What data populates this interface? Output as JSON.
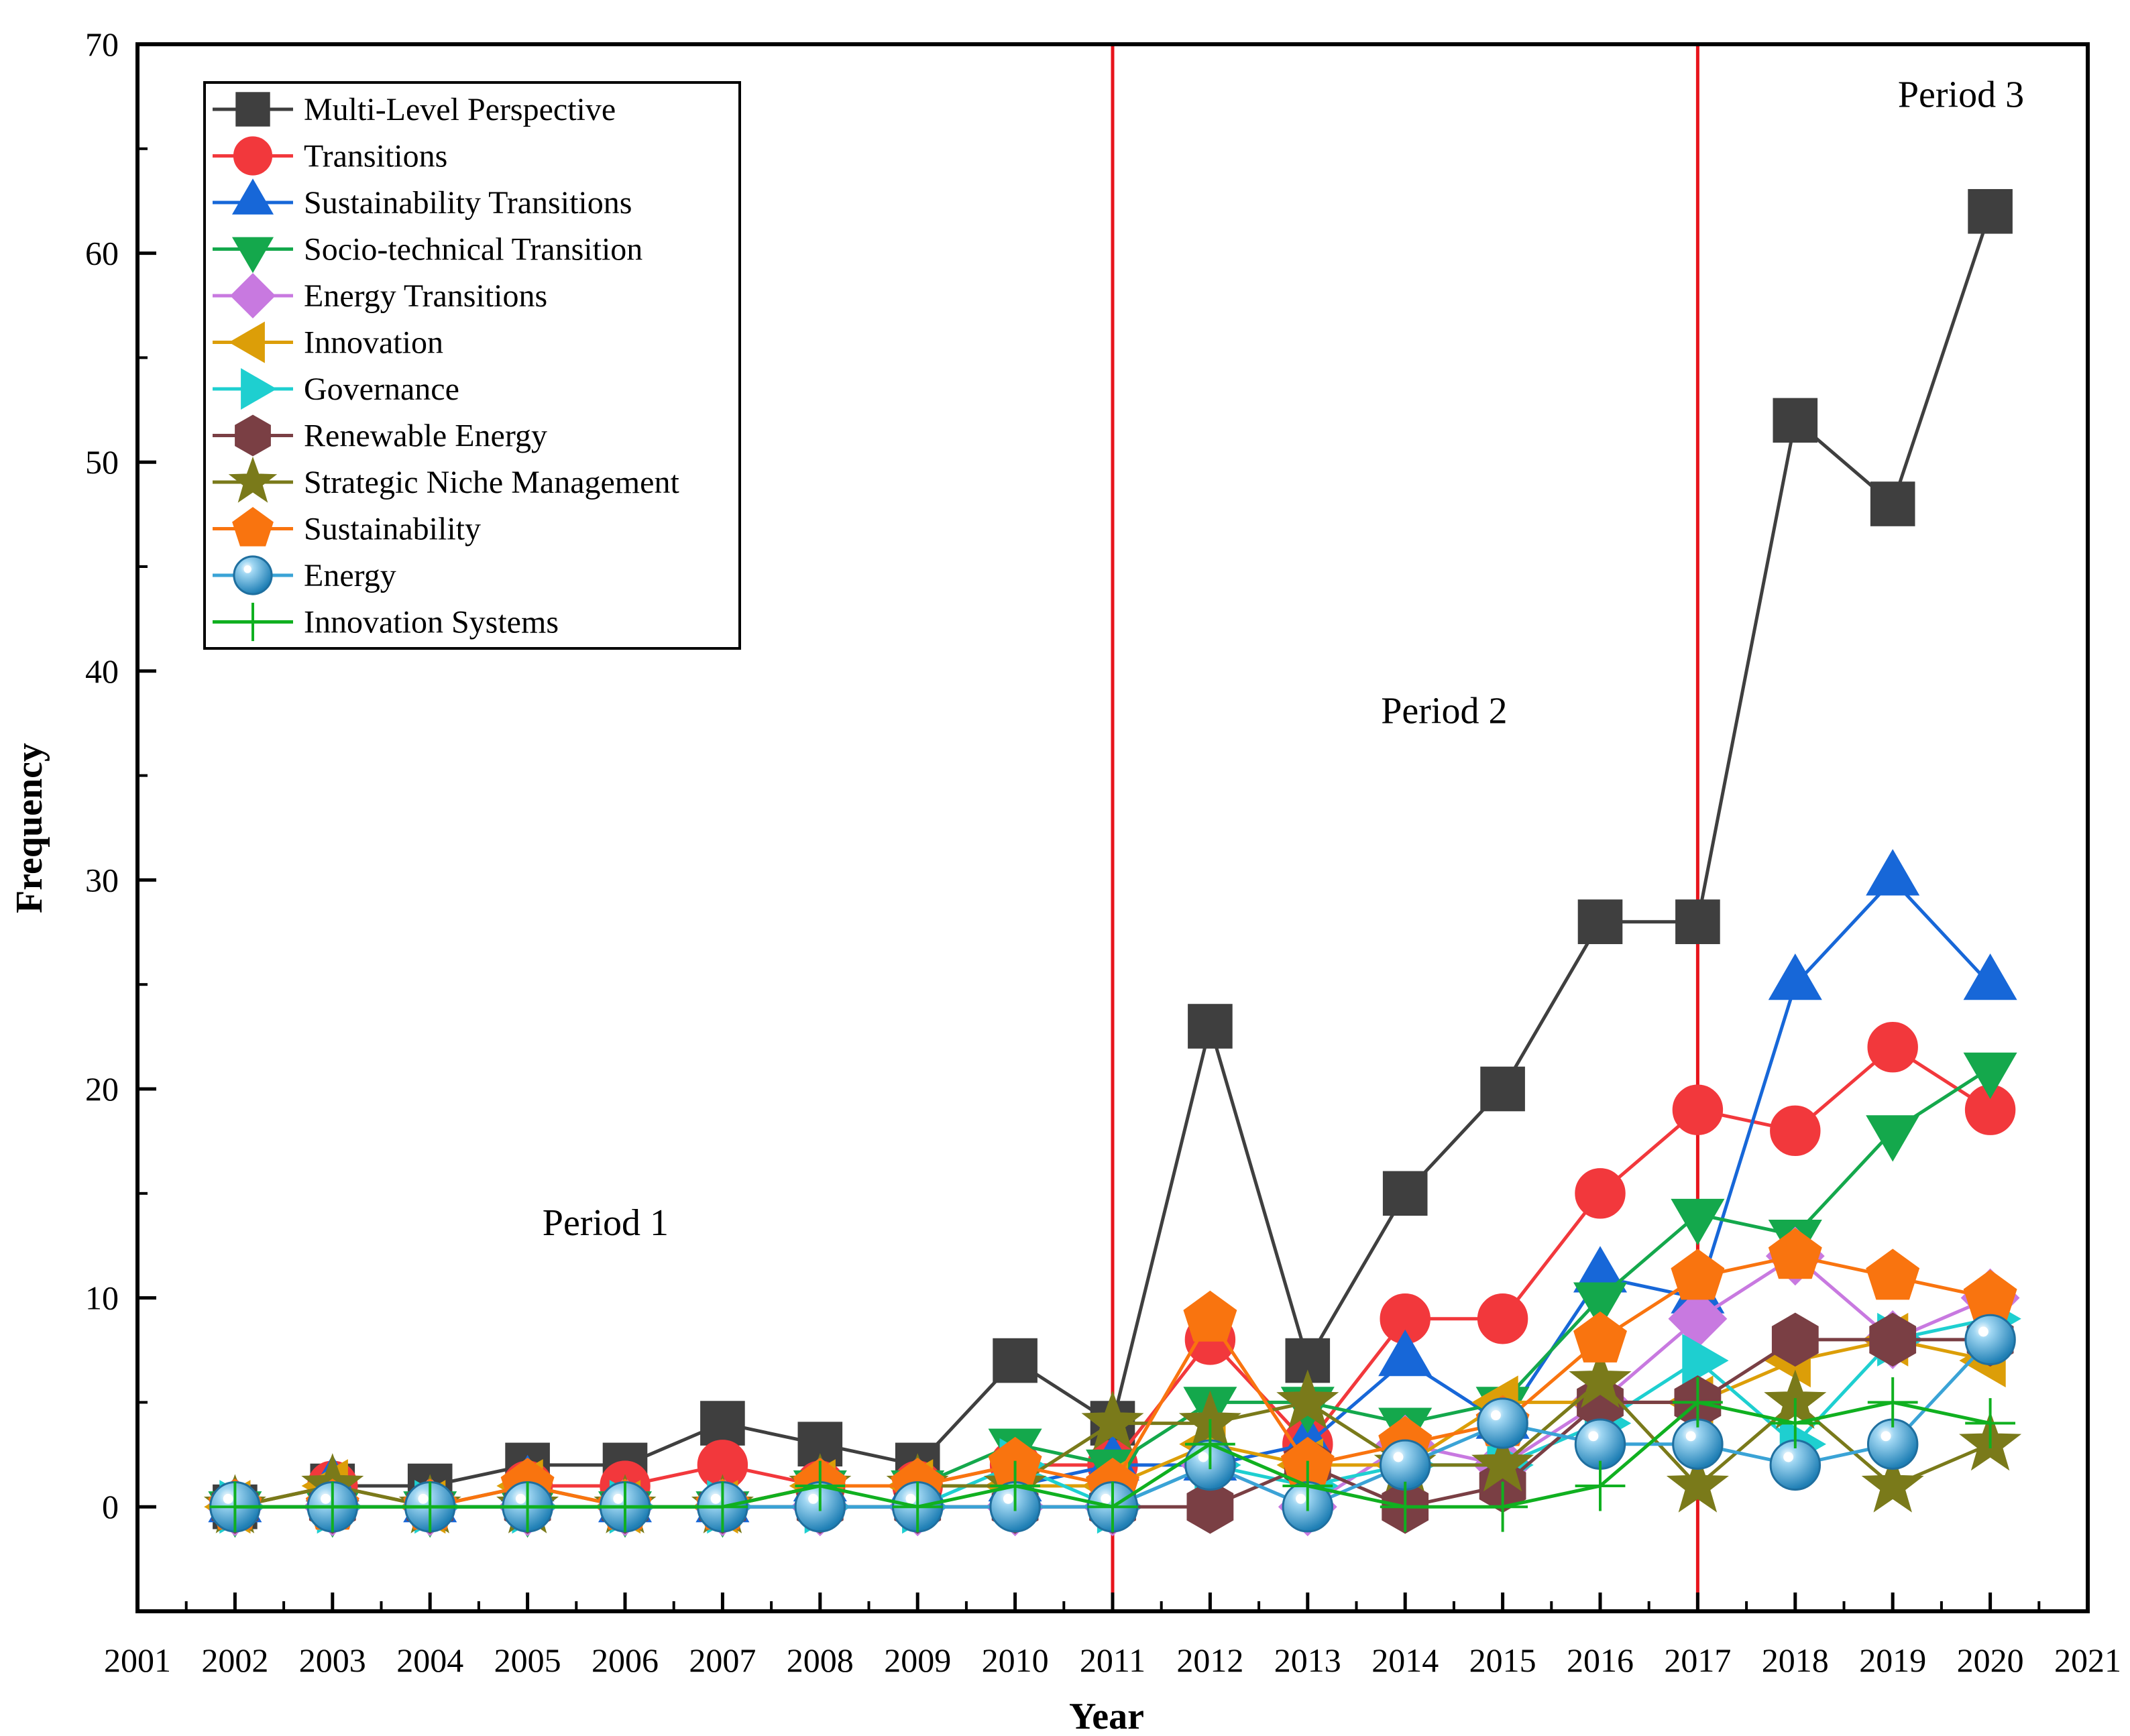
{
  "chart_data": {
    "type": "line",
    "title": "",
    "xlabel": "Year",
    "ylabel": "Frequency",
    "xlim": [
      2001,
      2021
    ],
    "ylim": [
      -5,
      70
    ],
    "x_ticks": [
      2001,
      2002,
      2003,
      2004,
      2005,
      2006,
      2007,
      2008,
      2009,
      2010,
      2011,
      2012,
      2013,
      2014,
      2015,
      2016,
      2017,
      2018,
      2019,
      2020,
      2021
    ],
    "y_ticks": [
      0,
      10,
      20,
      30,
      40,
      50,
      60,
      70
    ],
    "grid": false,
    "legend_position": "top-left",
    "x": [
      2002,
      2003,
      2004,
      2005,
      2006,
      2007,
      2008,
      2009,
      2010,
      2011,
      2012,
      2013,
      2014,
      2015,
      2016,
      2017,
      2018,
      2019,
      2020
    ],
    "vertical_lines": [
      {
        "x": 2011,
        "color": "#e8141c"
      },
      {
        "x": 2017,
        "color": "#e8141c"
      }
    ],
    "annotations": [
      {
        "text": "Period 1",
        "x": 2005.8,
        "y": 13
      },
      {
        "text": "Period 2",
        "x": 2014.4,
        "y": 37.5
      },
      {
        "text": "Period 3",
        "x": 2019.7,
        "y": 67
      }
    ],
    "series": [
      {
        "name": "Multi-Level Perspective",
        "color": "#3f3f3f",
        "marker": "square",
        "values": [
          0,
          1,
          1,
          2,
          2,
          4,
          3,
          2,
          7,
          4,
          23,
          7,
          15,
          20,
          28,
          28,
          52,
          48,
          62
        ]
      },
      {
        "name": "Transitions",
        "color": "#f2383c",
        "marker": "circle",
        "values": [
          0,
          1,
          0,
          1,
          1,
          2,
          1,
          1,
          2,
          2,
          8,
          3,
          9,
          9,
          15,
          19,
          18,
          22,
          19
        ]
      },
      {
        "name": "Sustainability Transitions",
        "color": "#1767d8",
        "marker": "triangle-up",
        "values": [
          0,
          1,
          0,
          1,
          0,
          0,
          1,
          1,
          1,
          2,
          2,
          3,
          7,
          4,
          11,
          10,
          25,
          30,
          25
        ]
      },
      {
        "name": "Socio-technical Transition",
        "color": "#14a84c",
        "marker": "triangle-down",
        "values": [
          0,
          0,
          0,
          0,
          0,
          0,
          1,
          1,
          3,
          2,
          5,
          5,
          4,
          5,
          10,
          14,
          13,
          18,
          21
        ]
      },
      {
        "name": "Energy Transitions",
        "color": "#c879e0",
        "marker": "diamond",
        "values": [
          0,
          0,
          0,
          0,
          0,
          0,
          0,
          0,
          0,
          0,
          2,
          0,
          3,
          2,
          5,
          9,
          12,
          8,
          10
        ]
      },
      {
        "name": "Innovation",
        "color": "#dc9e08",
        "marker": "triangle-left",
        "values": [
          0,
          1,
          0,
          1,
          0,
          0,
          1,
          1,
          1,
          1,
          3,
          2,
          2,
          5,
          5,
          5,
          7,
          8,
          7
        ]
      },
      {
        "name": "Governance",
        "color": "#1ecfd0",
        "marker": "triangle-right",
        "values": [
          0,
          0,
          0,
          0,
          0,
          0,
          0,
          0,
          2,
          0,
          2,
          1,
          2,
          2,
          4,
          7,
          3,
          8,
          9
        ]
      },
      {
        "name": "Renewable Energy",
        "color": "#7a3f44",
        "marker": "hexagon",
        "values": [
          0,
          0,
          0,
          0,
          0,
          0,
          0,
          0,
          0,
          0,
          0,
          2,
          0,
          1,
          5,
          5,
          8,
          8,
          8
        ]
      },
      {
        "name": "Strategic Niche Management",
        "color": "#7a7a1a",
        "marker": "star",
        "values": [
          0,
          1,
          0,
          0,
          0,
          0,
          1,
          1,
          1,
          4,
          4,
          5,
          2,
          2,
          6,
          1,
          5,
          1,
          3
        ]
      },
      {
        "name": "Sustainability",
        "color": "#f9740f",
        "marker": "pentagon",
        "values": [
          0,
          0,
          0,
          1,
          0,
          0,
          1,
          1,
          2,
          1,
          9,
          2,
          3,
          4,
          8,
          11,
          12,
          11,
          10
        ]
      },
      {
        "name": "Energy",
        "color": "#3aa3d6",
        "marker": "sphere",
        "values": [
          0,
          0,
          0,
          0,
          0,
          0,
          0,
          0,
          0,
          0,
          2,
          0,
          2,
          4,
          3,
          3,
          2,
          3,
          8
        ]
      },
      {
        "name": "Innovation Systems",
        "color": "#10b020",
        "marker": "plus",
        "values": [
          0,
          0,
          0,
          0,
          0,
          0,
          1,
          0,
          1,
          0,
          3,
          1,
          0,
          0,
          1,
          5,
          4,
          5,
          4
        ]
      }
    ]
  }
}
